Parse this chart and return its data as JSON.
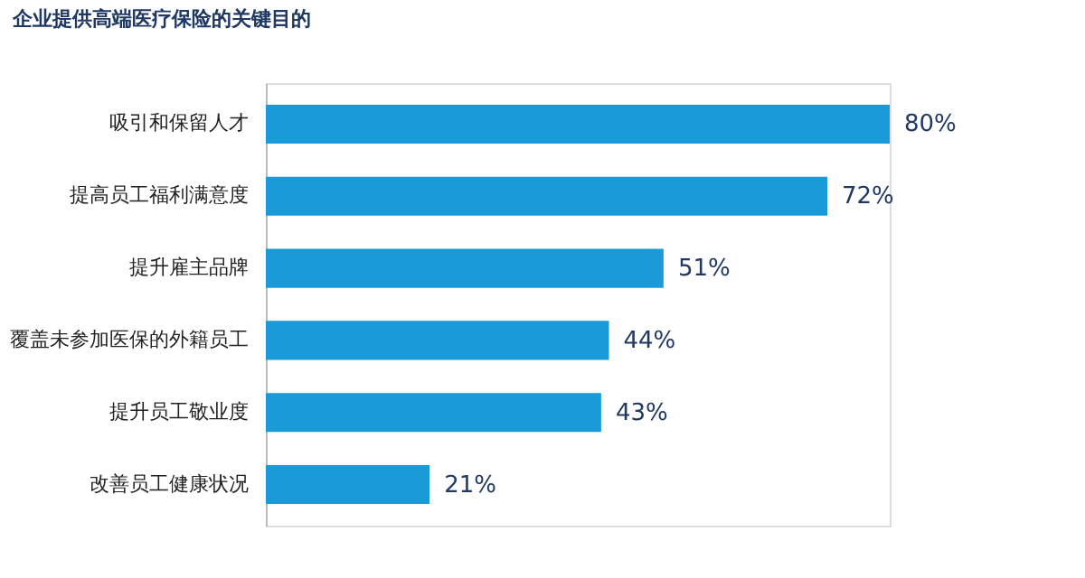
{
  "chart_data": {
    "type": "bar",
    "orientation": "horizontal",
    "title": "企业提供高端医疗保险的关键目的",
    "categories": [
      "吸引和保留人才",
      "提高员工福利满意度",
      "提升雇主品牌",
      "覆盖未参加医保的外籍员工",
      "提升员工敬业度",
      "改善员工健康状况"
    ],
    "values": [
      80,
      72,
      51,
      44,
      43,
      21
    ],
    "value_labels": [
      "80%",
      "72%",
      "51%",
      "44%",
      "43%",
      "21%"
    ],
    "color": "#1a9ad6"
  }
}
